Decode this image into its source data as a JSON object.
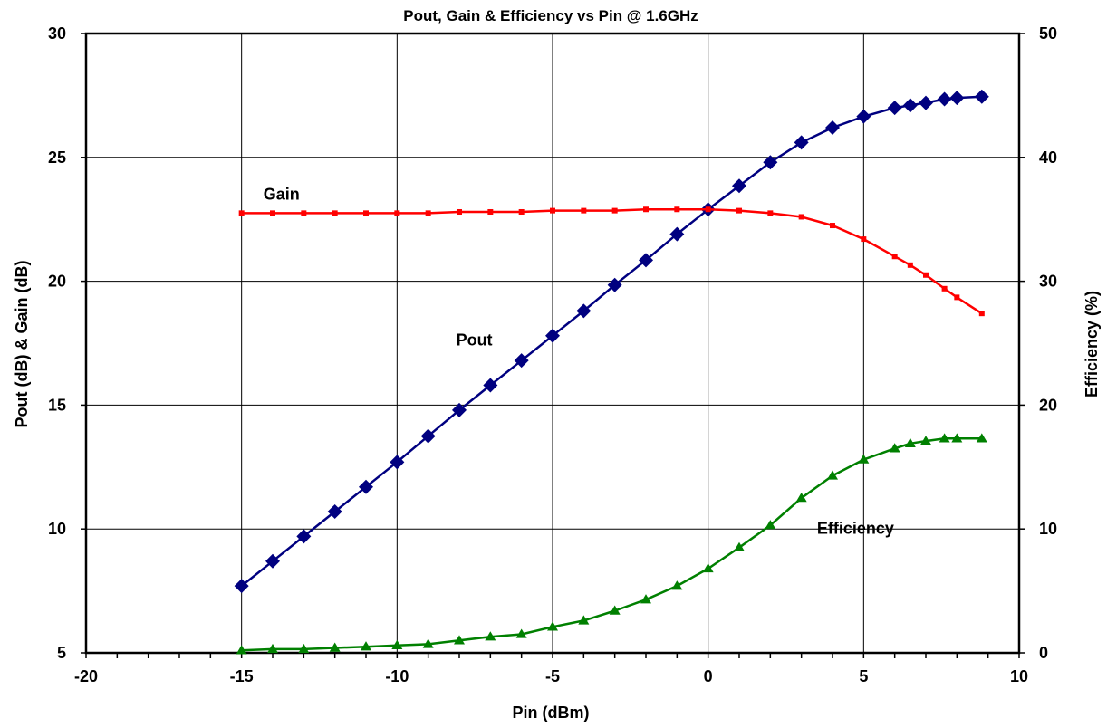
{
  "chart_data": {
    "type": "line",
    "title": "Pout, Gain & Efficiency vs Pin @ 1.6GHz",
    "xlabel": "Pin (dBm)",
    "ylabel": "Pout (dB) & Gain (dB)",
    "y2label": "Efficiency (%)",
    "xlim": [
      -20,
      10
    ],
    "ylim": [
      5,
      30
    ],
    "y2lim": [
      0,
      50
    ],
    "xticks": [
      "-20",
      "-15",
      "-10",
      "-5",
      "0",
      "5",
      "10"
    ],
    "yticks": [
      "5",
      "10",
      "15",
      "20",
      "25",
      "30"
    ],
    "y2ticks": [
      "0",
      "10",
      "20",
      "30",
      "40",
      "50"
    ],
    "grid": true,
    "legend": "none",
    "series": [
      {
        "name": "Pout",
        "axis": "left",
        "color": "#000080",
        "marker": "diamond",
        "x": [
          -15,
          -14,
          -13,
          -12,
          -11,
          -10,
          -9,
          -8,
          -7,
          -6,
          -5,
          -4,
          -3,
          -2,
          -1,
          0,
          1,
          2,
          3,
          4,
          5,
          6,
          6.5,
          7,
          7.6,
          8,
          8.8
        ],
        "y": [
          7.7,
          8.7,
          9.7,
          10.7,
          11.7,
          12.7,
          13.75,
          14.8,
          15.8,
          16.8,
          17.8,
          18.8,
          19.85,
          20.85,
          21.9,
          22.9,
          23.85,
          24.8,
          25.6,
          26.2,
          26.65,
          27.0,
          27.1,
          27.2,
          27.35,
          27.4,
          27.45
        ]
      },
      {
        "name": "Gain",
        "axis": "left",
        "color": "#ff0000",
        "marker": "square",
        "x": [
          -15,
          -14,
          -13,
          -12,
          -11,
          -10,
          -9,
          -8,
          -7,
          -6,
          -5,
          -4,
          -3,
          -2,
          -1,
          0,
          1,
          2,
          3,
          4,
          5,
          6,
          6.5,
          7,
          7.6,
          8,
          8.8
        ],
        "y": [
          22.75,
          22.75,
          22.75,
          22.75,
          22.75,
          22.75,
          22.75,
          22.8,
          22.8,
          22.8,
          22.85,
          22.85,
          22.85,
          22.9,
          22.9,
          22.9,
          22.85,
          22.75,
          22.6,
          22.25,
          21.7,
          21.0,
          20.65,
          20.25,
          19.7,
          19.35,
          18.7
        ]
      },
      {
        "name": "Efficiency",
        "axis": "right",
        "color": "#008000",
        "marker": "triangle",
        "x": [
          -15,
          -14,
          -13,
          -12,
          -11,
          -10,
          -9,
          -8,
          -7,
          -6,
          -5,
          -4,
          -3,
          -2,
          -1,
          0,
          1,
          2,
          3,
          4,
          5,
          6,
          6.5,
          7,
          7.6,
          8,
          8.8
        ],
        "y": [
          0.2,
          0.3,
          0.3,
          0.4,
          0.5,
          0.6,
          0.7,
          1.0,
          1.3,
          1.5,
          2.1,
          2.6,
          3.4,
          4.3,
          5.4,
          6.8,
          8.5,
          10.3,
          12.5,
          14.3,
          15.6,
          16.5,
          16.9,
          17.1,
          17.3,
          17.3,
          17.3
        ]
      }
    ],
    "annotations": [
      {
        "text": "Gain",
        "x": -14.3,
        "y": 23.3
      },
      {
        "text": "Pout",
        "x": -8.1,
        "y": 17.4
      },
      {
        "text": "Efficiency",
        "x": 3.5,
        "y": 9.8
      }
    ]
  }
}
